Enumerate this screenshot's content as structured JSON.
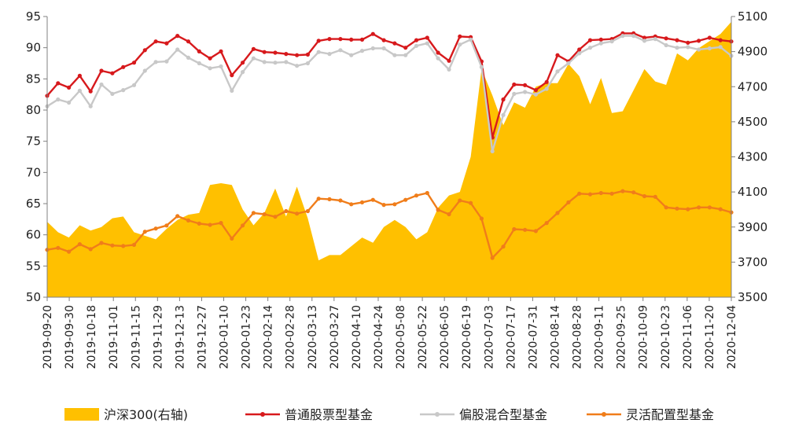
{
  "chart_data": {
    "type": "line",
    "title": "",
    "xlabel": "",
    "ylabel": "",
    "y_left": {
      "min": 50,
      "max": 95,
      "ticks": [
        50,
        55,
        60,
        65,
        70,
        75,
        80,
        85,
        90,
        95
      ]
    },
    "y_right": {
      "min": 3500,
      "max": 5100,
      "ticks": [
        3500,
        3700,
        3900,
        4100,
        4300,
        4500,
        4700,
        4900,
        5100
      ]
    },
    "grid": false,
    "legend_position": "bottom",
    "x_ticks": [
      "2019-09-20",
      "2019-09-30",
      "2019-10-18",
      "2019-11-01",
      "2019-11-15",
      "2019-11-29",
      "2019-12-13",
      "2019-12-27",
      "2020-01-10",
      "2020-01-23",
      "2020-02-14",
      "2020-02-28",
      "2020-03-13",
      "2020-03-27",
      "2020-04-10",
      "2020-04-24",
      "2020-05-08",
      "2020-05-22",
      "2020-06-05",
      "2020-06-19",
      "2020-07-03",
      "2020-07-17",
      "2020-07-31",
      "2020-08-14",
      "2020-08-28",
      "2020-09-11",
      "2020-09-25",
      "2020-10-09",
      "2020-10-23",
      "2020-11-06",
      "2020-11-20",
      "2020-12-04"
    ],
    "series": [
      {
        "name": "沪深300(右轴)",
        "kind": "area",
        "axis": "right",
        "color": "#FFC000",
        "values": [
          3930,
          3870,
          3840,
          3910,
          3880,
          3900,
          3950,
          3960,
          3870,
          3850,
          3830,
          3890,
          3940,
          3970,
          3980,
          4140,
          4150,
          4140,
          4000,
          3910,
          3980,
          4120,
          3960,
          4130,
          3950,
          3710,
          3740,
          3740,
          3790,
          3840,
          3810,
          3900,
          3940,
          3900,
          3830,
          3870,
          4010,
          4080,
          4100,
          4300,
          4800,
          4650,
          4480,
          4610,
          4580,
          4700,
          4720,
          4720,
          4830,
          4760,
          4600,
          4750,
          4550,
          4560,
          4680,
          4800,
          4730,
          4710,
          4890,
          4850,
          4920,
          4960,
          5000,
          5070
        ]
      },
      {
        "name": "普通股票型基金",
        "kind": "line",
        "axis": "left",
        "color": "#D7191C",
        "values": [
          82.3,
          84.3,
          83.6,
          85.5,
          83.0,
          86.3,
          85.9,
          86.9,
          87.6,
          89.6,
          91.0,
          90.7,
          91.9,
          91.0,
          89.4,
          88.3,
          89.4,
          85.6,
          87.6,
          89.8,
          89.3,
          89.2,
          89.0,
          88.8,
          88.9,
          91.1,
          91.4,
          91.4,
          91.3,
          91.3,
          92.2,
          91.2,
          90.7,
          90.0,
          91.2,
          91.6,
          89.2,
          87.9,
          91.8,
          91.7,
          87.8,
          75.6,
          81.7,
          84.1,
          84.0,
          83.2,
          84.5,
          88.8,
          87.8,
          89.7,
          91.2,
          91.3,
          91.4,
          92.3,
          92.3,
          91.6,
          91.8,
          91.5,
          91.2,
          90.8,
          91.1,
          91.6,
          91.2,
          91.0
        ]
      },
      {
        "name": "偏股混合型基金",
        "kind": "line",
        "axis": "left",
        "color": "#C8C8C8",
        "values": [
          80.6,
          81.7,
          81.2,
          83.1,
          80.6,
          84.1,
          82.6,
          83.2,
          84.0,
          86.3,
          87.7,
          87.8,
          89.7,
          88.4,
          87.5,
          86.7,
          87.0,
          83.1,
          86.1,
          88.3,
          87.7,
          87.6,
          87.7,
          87.1,
          87.5,
          89.3,
          89.0,
          89.6,
          88.8,
          89.5,
          89.9,
          89.9,
          88.8,
          88.8,
          90.3,
          90.7,
          88.3,
          86.5,
          90.5,
          91.3,
          86.9,
          73.4,
          79.2,
          82.6,
          82.9,
          82.5,
          83.4,
          86.2,
          87.5,
          89.1,
          90.0,
          90.7,
          91.0,
          91.9,
          91.9,
          91.1,
          91.4,
          90.4,
          90.0,
          90.1,
          89.7,
          89.9,
          90.1,
          88.7
        ]
      },
      {
        "name": "灵活配置型基金",
        "kind": "line",
        "axis": "left",
        "color": "#F07D1A",
        "values": [
          57.6,
          57.9,
          57.3,
          58.5,
          57.7,
          58.7,
          58.3,
          58.2,
          58.4,
          60.5,
          61.0,
          61.5,
          63.0,
          62.3,
          61.8,
          61.6,
          61.9,
          59.4,
          61.5,
          63.5,
          63.3,
          62.9,
          63.8,
          63.4,
          63.8,
          65.8,
          65.7,
          65.5,
          64.9,
          65.2,
          65.6,
          64.8,
          64.9,
          65.6,
          66.3,
          66.7,
          64.0,
          63.3,
          65.5,
          65.1,
          62.6,
          56.3,
          58.1,
          60.9,
          60.8,
          60.6,
          61.9,
          63.5,
          65.2,
          66.6,
          66.5,
          66.7,
          66.6,
          67.0,
          66.8,
          66.2,
          66.1,
          64.4,
          64.2,
          64.1,
          64.4,
          64.4,
          64.1,
          63.6
        ]
      }
    ]
  }
}
